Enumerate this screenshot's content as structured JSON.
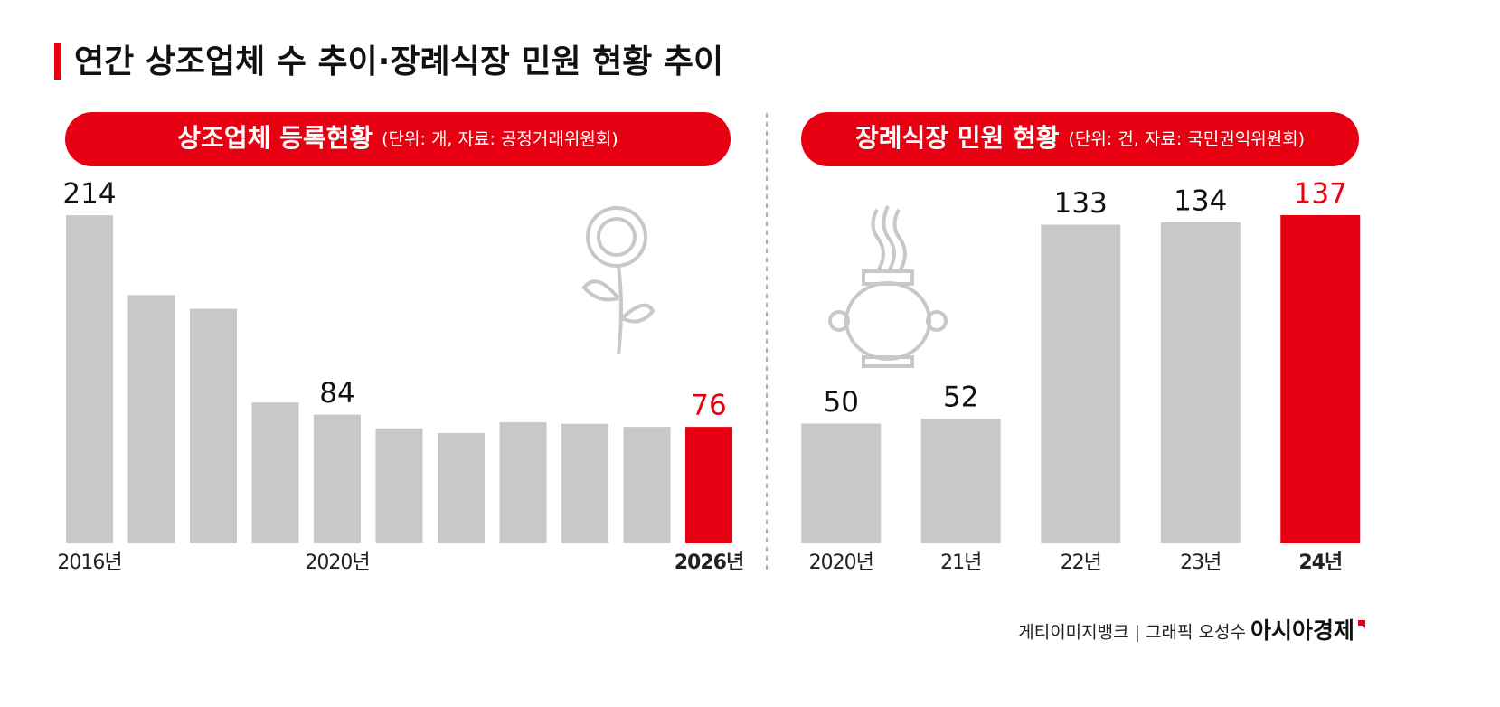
{
  "header": {
    "title": "연간 상조업체 수 추이·장례식장 민원 현황 추이"
  },
  "chart_data": [
    {
      "type": "bar",
      "title": "상조업체 등록현황",
      "subtitle": "(단위: 개, 자료: 공정거래위원회)",
      "categories": [
        "2016년",
        null,
        null,
        null,
        "2020년",
        null,
        null,
        null,
        null,
        null,
        "2026년"
      ],
      "values": [
        214,
        162,
        153,
        92,
        84,
        75,
        72,
        79,
        78,
        76,
        76
      ],
      "value_labels": [
        "214",
        null,
        null,
        null,
        "84",
        null,
        null,
        null,
        null,
        null,
        "76"
      ],
      "colors": [
        "#c8c8c8",
        "#c8c8c8",
        "#c8c8c8",
        "#c8c8c8",
        "#c8c8c8",
        "#c8c8c8",
        "#c8c8c8",
        "#c8c8c8",
        "#c8c8c8",
        "#c8c8c8",
        "#e60012"
      ],
      "ylim": [
        0,
        230
      ]
    },
    {
      "type": "bar",
      "title": "장례식장 민원 현황",
      "subtitle": "(단위: 건, 자료: 국민권익위원회)",
      "categories": [
        "2020년",
        "21년",
        "22년",
        "23년",
        "24년"
      ],
      "values": [
        50,
        52,
        133,
        134,
        137
      ],
      "colors": [
        "#c8c8c8",
        "#c8c8c8",
        "#c8c8c8",
        "#c8c8c8",
        "#e60012"
      ],
      "ylim": [
        0,
        150
      ]
    }
  ],
  "footer": {
    "credit": "게티이미지뱅크 | 그래픽 오성수",
    "logo": "아시아경제"
  }
}
